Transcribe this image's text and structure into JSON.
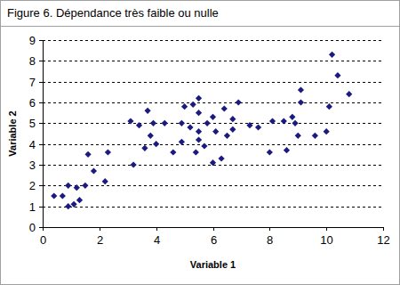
{
  "chart_data": {
    "type": "scatter",
    "title": "Figure 6. Dépendance très faible ou nulle",
    "x_label": "Variable 1",
    "y_label": "Variable 2",
    "x": [
      0.4,
      0.7,
      0.9,
      0.9,
      1.1,
      1.2,
      1.3,
      1.5,
      1.6,
      1.8,
      2.2,
      2.3,
      3.1,
      3.2,
      3.4,
      3.6,
      3.7,
      3.8,
      3.9,
      4.0,
      4.3,
      4.6,
      4.9,
      4.9,
      5.0,
      5.2,
      5.3,
      5.4,
      5.5,
      5.5,
      5.5,
      5.5,
      5.7,
      5.8,
      6.0,
      6.0,
      6.1,
      6.3,
      6.4,
      6.5,
      6.7,
      6.7,
      6.9,
      7.3,
      7.6,
      8.0,
      8.1,
      8.5,
      8.6,
      8.8,
      8.9,
      9.0,
      9.1,
      9.1,
      9.6,
      10.0,
      10.1,
      10.2,
      10.4,
      10.8
    ],
    "values": [
      1.5,
      1.5,
      1.0,
      2.0,
      1.1,
      1.9,
      1.3,
      2.0,
      3.5,
      2.7,
      2.2,
      3.6,
      5.1,
      3.0,
      4.9,
      3.8,
      5.6,
      4.4,
      5.0,
      4.0,
      5.0,
      3.6,
      4.1,
      5.0,
      5.8,
      4.8,
      5.9,
      3.6,
      6.2,
      5.5,
      4.6,
      4.2,
      3.9,
      5.0,
      5.3,
      3.1,
      4.6,
      3.3,
      5.7,
      4.4,
      5.2,
      4.7,
      6.0,
      4.9,
      4.8,
      3.6,
      5.1,
      5.1,
      3.7,
      5.3,
      5.0,
      4.4,
      6.0,
      6.6,
      4.4,
      4.6,
      5.8,
      8.3,
      7.3,
      6.4
    ],
    "color": "#1a1a80",
    "marker": "diamond",
    "xlim": [
      0,
      12
    ],
    "xticks": [
      0,
      2,
      4,
      6,
      8,
      10,
      12
    ],
    "ylim": [
      0,
      9
    ],
    "yticks": [
      0,
      1,
      2,
      3,
      4,
      5,
      6,
      7,
      8,
      9
    ],
    "grid": true
  }
}
